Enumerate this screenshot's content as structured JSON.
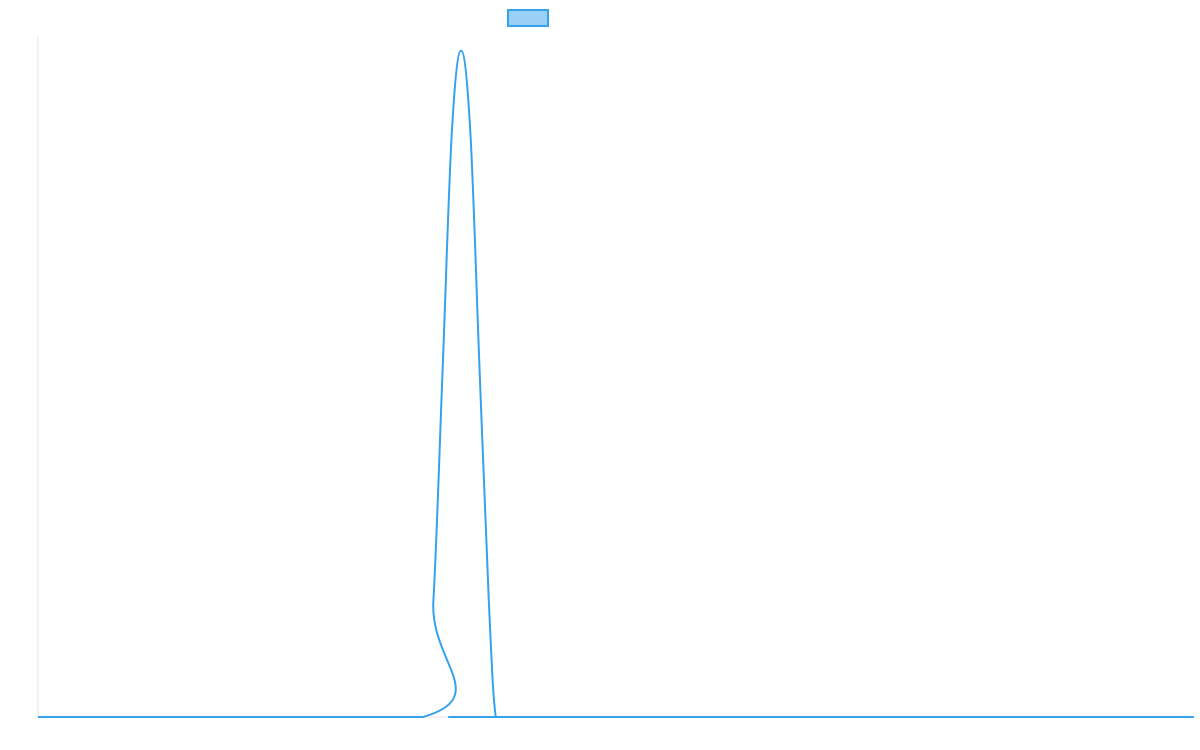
{
  "chart_data": {
    "type": "line",
    "title": "",
    "xlabel": "",
    "ylabel": "",
    "grid": false,
    "legend": {
      "placement": "top-center",
      "entries": [
        {
          "label": "",
          "swatch_fill": "#9ad0f5",
          "swatch_stroke": "#36a2eb"
        }
      ]
    },
    "xlim": [
      0,
      100
    ],
    "ylim": [
      0,
      1
    ],
    "series": [
      {
        "color": "#36a2eb",
        "x": [
          0,
          33.3,
          34.2,
          35.0,
          35.8,
          36.6,
          37.4,
          38.2,
          39.0,
          39.6,
          40.4,
          100
        ],
        "y": [
          0,
          0,
          0.17,
          0.51,
          0.86,
          0.98,
          0.86,
          0.51,
          0.17,
          0,
          0,
          0
        ]
      }
    ]
  }
}
